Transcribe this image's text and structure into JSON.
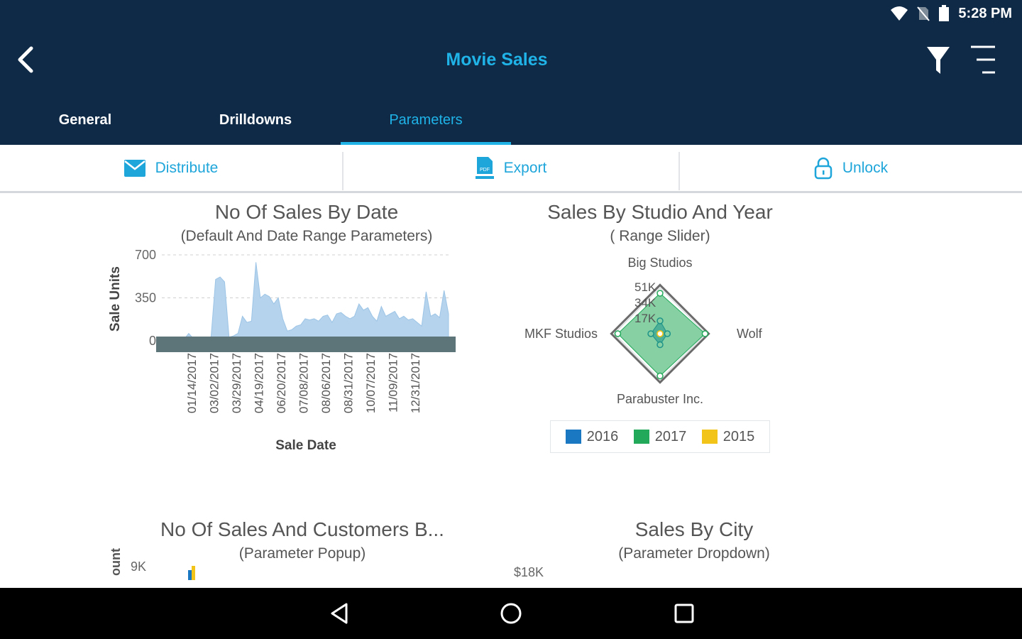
{
  "status_bar": {
    "time": "5:28 PM",
    "icons": [
      "wifi-icon",
      "no-sim-icon",
      "battery-icon"
    ]
  },
  "app_bar": {
    "title": "Movie Sales",
    "back_icon": "back-arrow-icon",
    "filter_icon": "filter-icon",
    "menu_icon": "menu-icon"
  },
  "tabs": [
    {
      "label": "General",
      "active": false
    },
    {
      "label": "Drilldowns",
      "active": false
    },
    {
      "label": "Parameters",
      "active": true
    }
  ],
  "actions": [
    {
      "label": "Distribute",
      "icon": "envelope-icon"
    },
    {
      "label": "Export",
      "icon": "pdf-file-icon"
    },
    {
      "label": "Unlock",
      "icon": "lock-icon"
    }
  ],
  "colors": {
    "header_bg": "#0f2a47",
    "accent": "#1fb3e8",
    "area_fill": "#b5d3ec",
    "range_bar": "#5d7579"
  },
  "chart_data": [
    {
      "type": "area",
      "title": "No Of Sales By Date",
      "subtitle": "(Default And Date Range Parameters)",
      "xlabel": "Sale Date",
      "ylabel": "Sale Units",
      "ylim": [
        0,
        700
      ],
      "yticks": [
        "700",
        "350",
        "0"
      ],
      "xticks": [
        "01/14/2017",
        "03/02/2017",
        "03/29/2017",
        "04/19/2017",
        "06/20/2017",
        "07/08/2017",
        "08/06/2017",
        "08/31/2017",
        "10/07/2017",
        "11/09/2017",
        "12/31/2017"
      ],
      "grid": true,
      "values": [
        0,
        0,
        0,
        0,
        10,
        15,
        60,
        20,
        25,
        30,
        30,
        30,
        500,
        520,
        480,
        30,
        40,
        60,
        200,
        150,
        160,
        640,
        350,
        380,
        360,
        300,
        350,
        180,
        80,
        90,
        120,
        130,
        180,
        170,
        180,
        160,
        200,
        210,
        150,
        220,
        230,
        200,
        180,
        200,
        300,
        250,
        270,
        200,
        160,
        280,
        200,
        220,
        240,
        180,
        200,
        170,
        180,
        150,
        120,
        400,
        200,
        220,
        190,
        410,
        220
      ]
    },
    {
      "type": "radar",
      "title": "Sales By Studio And Year",
      "subtitle": "( Range Slider)",
      "axes": [
        "Big Studios",
        "Wolf",
        "Parabuster Inc.",
        "MKF Studios"
      ],
      "ticks": [
        "51K",
        "34K",
        "17K"
      ],
      "rmax": 51,
      "series": [
        {
          "name": "2016",
          "color": "#1a78c2",
          "values": [
            14,
            8,
            12,
            10
          ]
        },
        {
          "name": "2017",
          "color": "#22a95a",
          "values": [
            44,
            49,
            46,
            46
          ]
        },
        {
          "name": "2015",
          "color": "#f2c318",
          "values": [
            0,
            0,
            0,
            0
          ]
        }
      ],
      "legend": "bottom"
    },
    {
      "type": "bar",
      "title": "No Of Sales And Customers B...",
      "subtitle": "(Parameter Popup)",
      "ylabel": "ount",
      "ytick_top": "9K"
    },
    {
      "type": "bar",
      "title": "Sales By City",
      "subtitle": "(Parameter Dropdown)",
      "ytick_top": "$18K"
    }
  ]
}
